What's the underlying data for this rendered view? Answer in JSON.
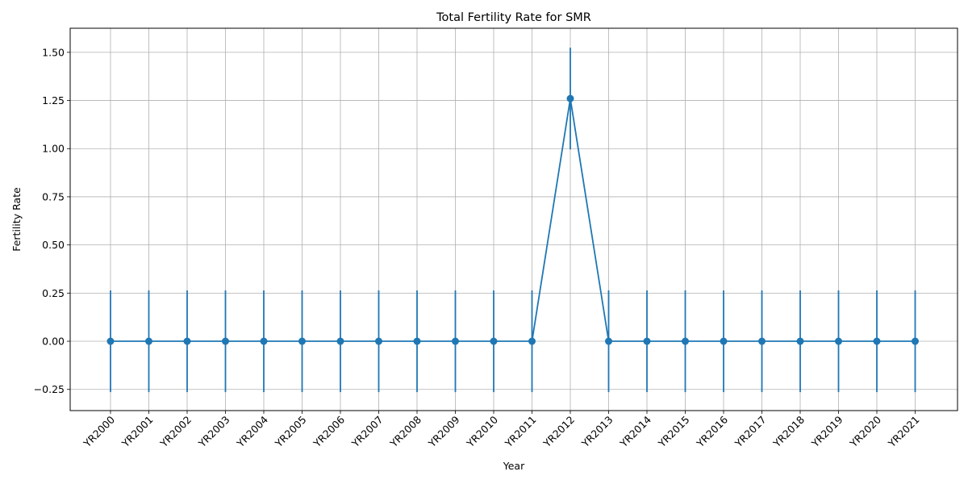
{
  "chart_data": {
    "type": "line",
    "title": "Total Fertility Rate for SMR",
    "xlabel": "Year",
    "ylabel": "Fertility Rate",
    "categories": [
      "YR2000",
      "YR2001",
      "YR2002",
      "YR2003",
      "YR2004",
      "YR2005",
      "YR2006",
      "YR2007",
      "YR2008",
      "YR2009",
      "YR2010",
      "YR2011",
      "YR2012",
      "YR2013",
      "YR2014",
      "YR2015",
      "YR2016",
      "YR2017",
      "YR2018",
      "YR2019",
      "YR2020",
      "YR2021"
    ],
    "series": [
      {
        "values": [
          0,
          0,
          0,
          0,
          0,
          0,
          0,
          0,
          0,
          0,
          0,
          0,
          1.26,
          0,
          0,
          0,
          0,
          0,
          0,
          0,
          0,
          0
        ],
        "error": [
          0.264,
          0.264,
          0.264,
          0.264,
          0.264,
          0.264,
          0.264,
          0.264,
          0.264,
          0.264,
          0.264,
          0.264,
          0.264,
          0.264,
          0.264,
          0.264,
          0.264,
          0.264,
          0.264,
          0.264,
          0.264,
          0.264
        ],
        "color": "#1f77b4",
        "marker": "circle"
      }
    ],
    "ylim": [
      -0.36,
      1.625
    ],
    "yticks": [
      -0.25,
      0,
      0.25,
      0.5,
      0.75,
      1.0,
      1.25,
      1.5
    ],
    "ytick_labels": [
      "−0.25",
      "0.00",
      "0.25",
      "0.50",
      "0.75",
      "1.00",
      "1.25",
      "1.50"
    ],
    "grid": true,
    "legend": "none"
  }
}
